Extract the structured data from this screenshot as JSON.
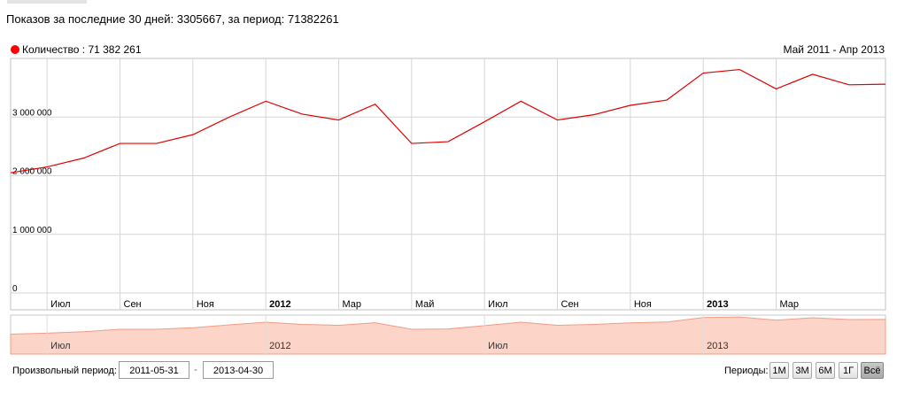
{
  "summary": "Показов за последние 30 дней: 3305667, за период: 71382261",
  "legend": {
    "label": "Количество : 71 382 261",
    "color": "#ff0000"
  },
  "range_label": "Май 2011 - Апр 2013",
  "chart_data": {
    "type": "line",
    "x": [
      "2011-05",
      "2011-06",
      "2011-07",
      "2011-08",
      "2011-09",
      "2011-10",
      "2011-11",
      "2011-12",
      "2012-01",
      "2012-02",
      "2012-03",
      "2012-04",
      "2012-05",
      "2012-06",
      "2012-07",
      "2012-08",
      "2012-09",
      "2012-10",
      "2012-11",
      "2012-12",
      "2013-01",
      "2013-02",
      "2013-03",
      "2013-04",
      "2013-05"
    ],
    "series": [
      {
        "name": "Количество",
        "color": "#e00000",
        "values": [
          2050000,
          2150000,
          2300000,
          2550000,
          2550000,
          2700000,
          3000000,
          3270000,
          3050000,
          2950000,
          3220000,
          2550000,
          2580000,
          2920000,
          3270000,
          2950000,
          3040000,
          3200000,
          3290000,
          3750000,
          3810000,
          3480000,
          3730000,
          3550000,
          3560000
        ]
      }
    ],
    "ylim": [
      0,
      4000000
    ],
    "yticks": [
      {
        "value": 0,
        "label": "0"
      },
      {
        "value": 1000000,
        "label": "1 000 000"
      },
      {
        "value": 2000000,
        "label": "2 000 000"
      },
      {
        "value": 3000000,
        "label": "3 000 000"
      }
    ],
    "xticks": [
      {
        "label": "Июл",
        "bold": false
      },
      {
        "label": "Сен",
        "bold": false
      },
      {
        "label": "Ноя",
        "bold": false
      },
      {
        "label": "2012",
        "bold": true
      },
      {
        "label": "Мар",
        "bold": false
      },
      {
        "label": "Май",
        "bold": false
      },
      {
        "label": "Июл",
        "bold": false
      },
      {
        "label": "Сен",
        "bold": false
      },
      {
        "label": "Ноя",
        "bold": false
      },
      {
        "label": "2013",
        "bold": true
      },
      {
        "label": "Мар",
        "bold": false
      }
    ],
    "navigator_ticks": [
      "Июл",
      "2012",
      "Июл",
      "2013"
    ],
    "grid": true,
    "navigator_fill": "#fcd4c8",
    "navigator_line": "#f39b86"
  },
  "controls": {
    "custom_period_label": "Произвольный период:",
    "date_from": "2011-05-31",
    "date_sep": "-",
    "date_to": "2013-04-30",
    "periods_label": "Периоды:",
    "periods": [
      {
        "label": "1М",
        "active": false
      },
      {
        "label": "3М",
        "active": false
      },
      {
        "label": "6М",
        "active": false
      },
      {
        "label": "1Г",
        "active": false
      },
      {
        "label": "Всё",
        "active": true
      }
    ]
  }
}
